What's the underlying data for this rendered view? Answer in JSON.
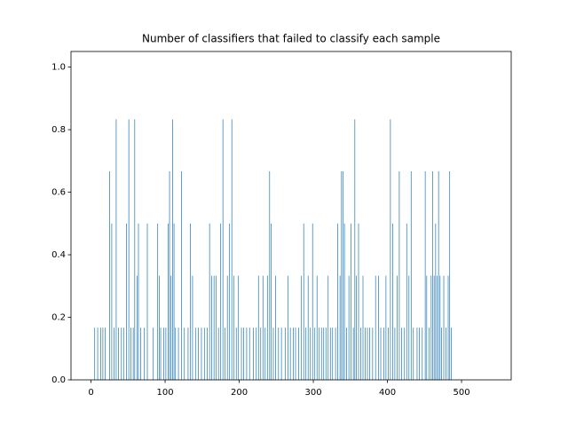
{
  "chart_data": {
    "type": "bar",
    "title": "Number of classifiers that failed to classify each sample",
    "color": "#1f77b4",
    "x": [
      5,
      9,
      13,
      16,
      19,
      25,
      28,
      31,
      34,
      37,
      41,
      44,
      48,
      51,
      54,
      57,
      59,
      62,
      64,
      67,
      72,
      76,
      84,
      90,
      92,
      94,
      98,
      101,
      104,
      106,
      108,
      110,
      112,
      114,
      118,
      122,
      126,
      131,
      134,
      137,
      141,
      145,
      149,
      153,
      157,
      160,
      163,
      166,
      169,
      172,
      175,
      178,
      181,
      184,
      187,
      190,
      193,
      196,
      199,
      203,
      206,
      210,
      214,
      219,
      223,
      226,
      229,
      232,
      235,
      238,
      241,
      243,
      246,
      249,
      253,
      257,
      262,
      266,
      269,
      273,
      276,
      280,
      284,
      287,
      290,
      293,
      296,
      299,
      302,
      305,
      308,
      311,
      314,
      317,
      320,
      323,
      326,
      330,
      333,
      336,
      338,
      340,
      342,
      345,
      348,
      351,
      354,
      356,
      358,
      361,
      364,
      367,
      370,
      373,
      376,
      380,
      384,
      388,
      391,
      395,
      398,
      401,
      404,
      407,
      410,
      413,
      416,
      419,
      423,
      426,
      429,
      432,
      435,
      440,
      443,
      447,
      451,
      453,
      456,
      459,
      461,
      463,
      465,
      467,
      469,
      471,
      473,
      476,
      479,
      482,
      484,
      486
    ],
    "values": [
      0.167,
      0.167,
      0.167,
      0.167,
      0.167,
      0.667,
      0.5,
      0.167,
      0.833,
      0.167,
      0.167,
      0.167,
      0.5,
      0.833,
      0.167,
      0.167,
      0.833,
      0.333,
      0.5,
      0.167,
      0.167,
      0.5,
      0.167,
      0.5,
      0.333,
      0.167,
      0.167,
      0.167,
      0.5,
      0.667,
      0.333,
      0.833,
      0.5,
      0.167,
      0.167,
      0.667,
      0.167,
      0.167,
      0.5,
      0.333,
      0.167,
      0.167,
      0.167,
      0.167,
      0.167,
      0.5,
      0.333,
      0.333,
      0.333,
      0.167,
      0.5,
      0.833,
      0.167,
      0.333,
      0.5,
      0.833,
      0.333,
      0.167,
      0.333,
      0.167,
      0.167,
      0.167,
      0.167,
      0.167,
      0.167,
      0.333,
      0.167,
      0.333,
      0.167,
      0.333,
      0.667,
      0.5,
      0.167,
      0.333,
      0.167,
      0.167,
      0.167,
      0.333,
      0.167,
      0.167,
      0.167,
      0.167,
      0.333,
      0.5,
      0.167,
      0.333,
      0.167,
      0.5,
      0.167,
      0.333,
      0.167,
      0.167,
      0.167,
      0.167,
      0.333,
      0.167,
      0.167,
      0.167,
      0.5,
      0.333,
      0.667,
      0.667,
      0.5,
      0.167,
      0.333,
      0.5,
      0.167,
      0.833,
      0.333,
      0.5,
      0.167,
      0.333,
      0.167,
      0.167,
      0.167,
      0.167,
      0.333,
      0.333,
      0.167,
      0.167,
      0.333,
      0.167,
      0.833,
      0.5,
      0.167,
      0.333,
      0.667,
      0.167,
      0.167,
      0.5,
      0.333,
      0.667,
      0.167,
      0.167,
      0.167,
      0.167,
      0.667,
      0.333,
      0.167,
      0.333,
      0.667,
      0.333,
      0.5,
      0.333,
      0.667,
      0.333,
      0.167,
      0.333,
      0.167,
      0.333,
      0.667,
      0.167
    ],
    "xlim": [
      -27,
      567
    ],
    "ylim": [
      0,
      1.05
    ],
    "xticks": [
      0,
      100,
      200,
      300,
      400,
      500
    ],
    "yticks": [
      {
        "value": 0,
        "label": "0.0"
      },
      0.2,
      0.4,
      0.6,
      0.8,
      {
        "value": 1,
        "label": "1.0"
      }
    ]
  }
}
